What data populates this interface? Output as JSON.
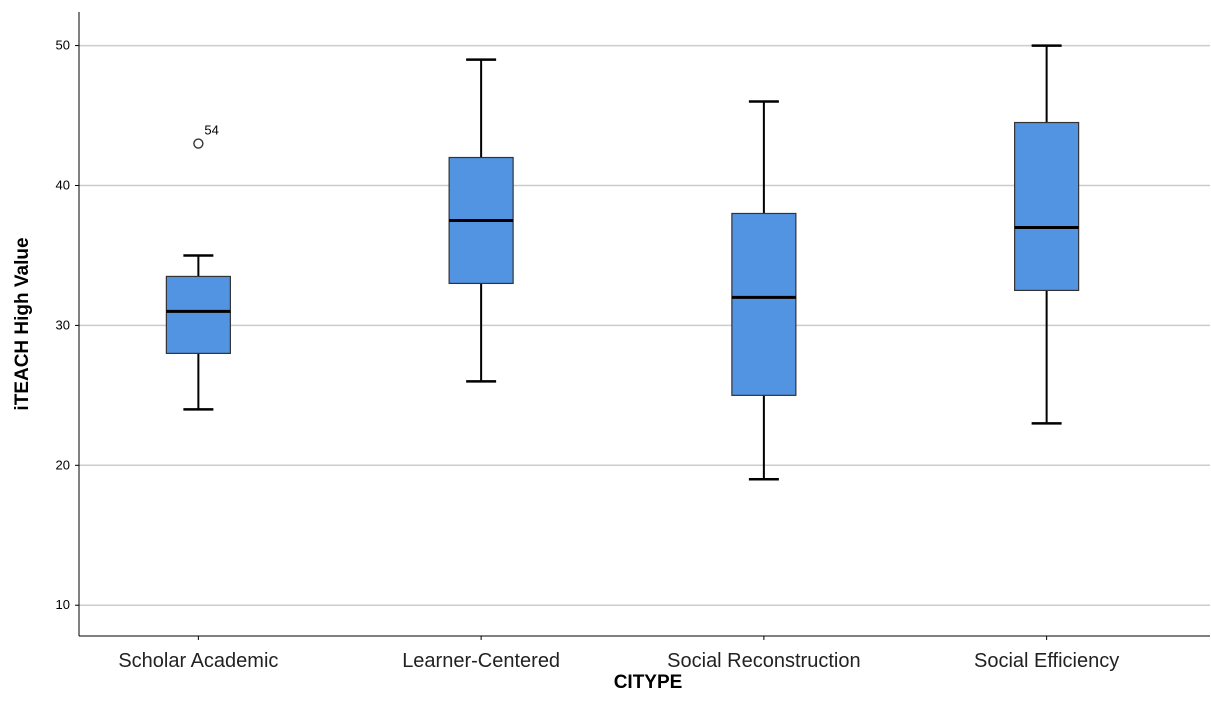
{
  "chart_data": {
    "type": "boxplot",
    "xlabel": "CITYPE",
    "ylabel": "iTEACH High Value",
    "ylim": [
      7.8,
      52.4
    ],
    "yticks": [
      10,
      20,
      30,
      40,
      50
    ],
    "grid": true,
    "box_color": "#5294e2",
    "categories": [
      "Scholar Academic",
      "Learner-Centered",
      "Social Reconstruction",
      "Social Efficiency"
    ],
    "boxes": [
      {
        "category": "Scholar Academic",
        "min": 24,
        "q1": 28,
        "median": 31,
        "q3": 33.5,
        "max": 35,
        "outliers": [
          {
            "value": 43,
            "label": "54"
          }
        ]
      },
      {
        "category": "Learner-Centered",
        "min": 26,
        "q1": 33,
        "median": 37.5,
        "q3": 42,
        "max": 49,
        "outliers": []
      },
      {
        "category": "Social Reconstruction",
        "min": 19,
        "q1": 25,
        "median": 32,
        "q3": 38,
        "max": 46,
        "outliers": []
      },
      {
        "category": "Social Efficiency",
        "min": 23,
        "q1": 32.5,
        "median": 37,
        "q3": 44.5,
        "max": 50,
        "outliers": []
      }
    ]
  }
}
